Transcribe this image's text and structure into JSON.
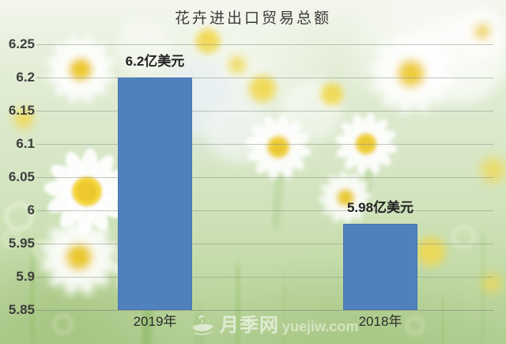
{
  "chart_data": {
    "type": "bar",
    "title": "花卉进出口贸易总额",
    "categories": [
      "2019年",
      "2018年"
    ],
    "values": [
      6.2,
      5.98
    ],
    "data_labels": [
      "6.2亿美元",
      "5.98亿美元"
    ],
    "unit": "亿美元",
    "ylim": [
      5.85,
      6.25
    ],
    "ytick_values": [
      6.25,
      6.2,
      6.15,
      6.1,
      6.05,
      6.0,
      5.95,
      5.9,
      5.85
    ],
    "ytick_labels": [
      "6.25",
      "6.2",
      "6.15",
      "6.1",
      "6.05",
      "6",
      "5.95",
      "5.9",
      "5.85"
    ],
    "grid": true,
    "legend_position": "none",
    "bar_color": "#4f81bd"
  },
  "watermark": {
    "site_name": "月季网",
    "domain": "yuejiw.com"
  }
}
